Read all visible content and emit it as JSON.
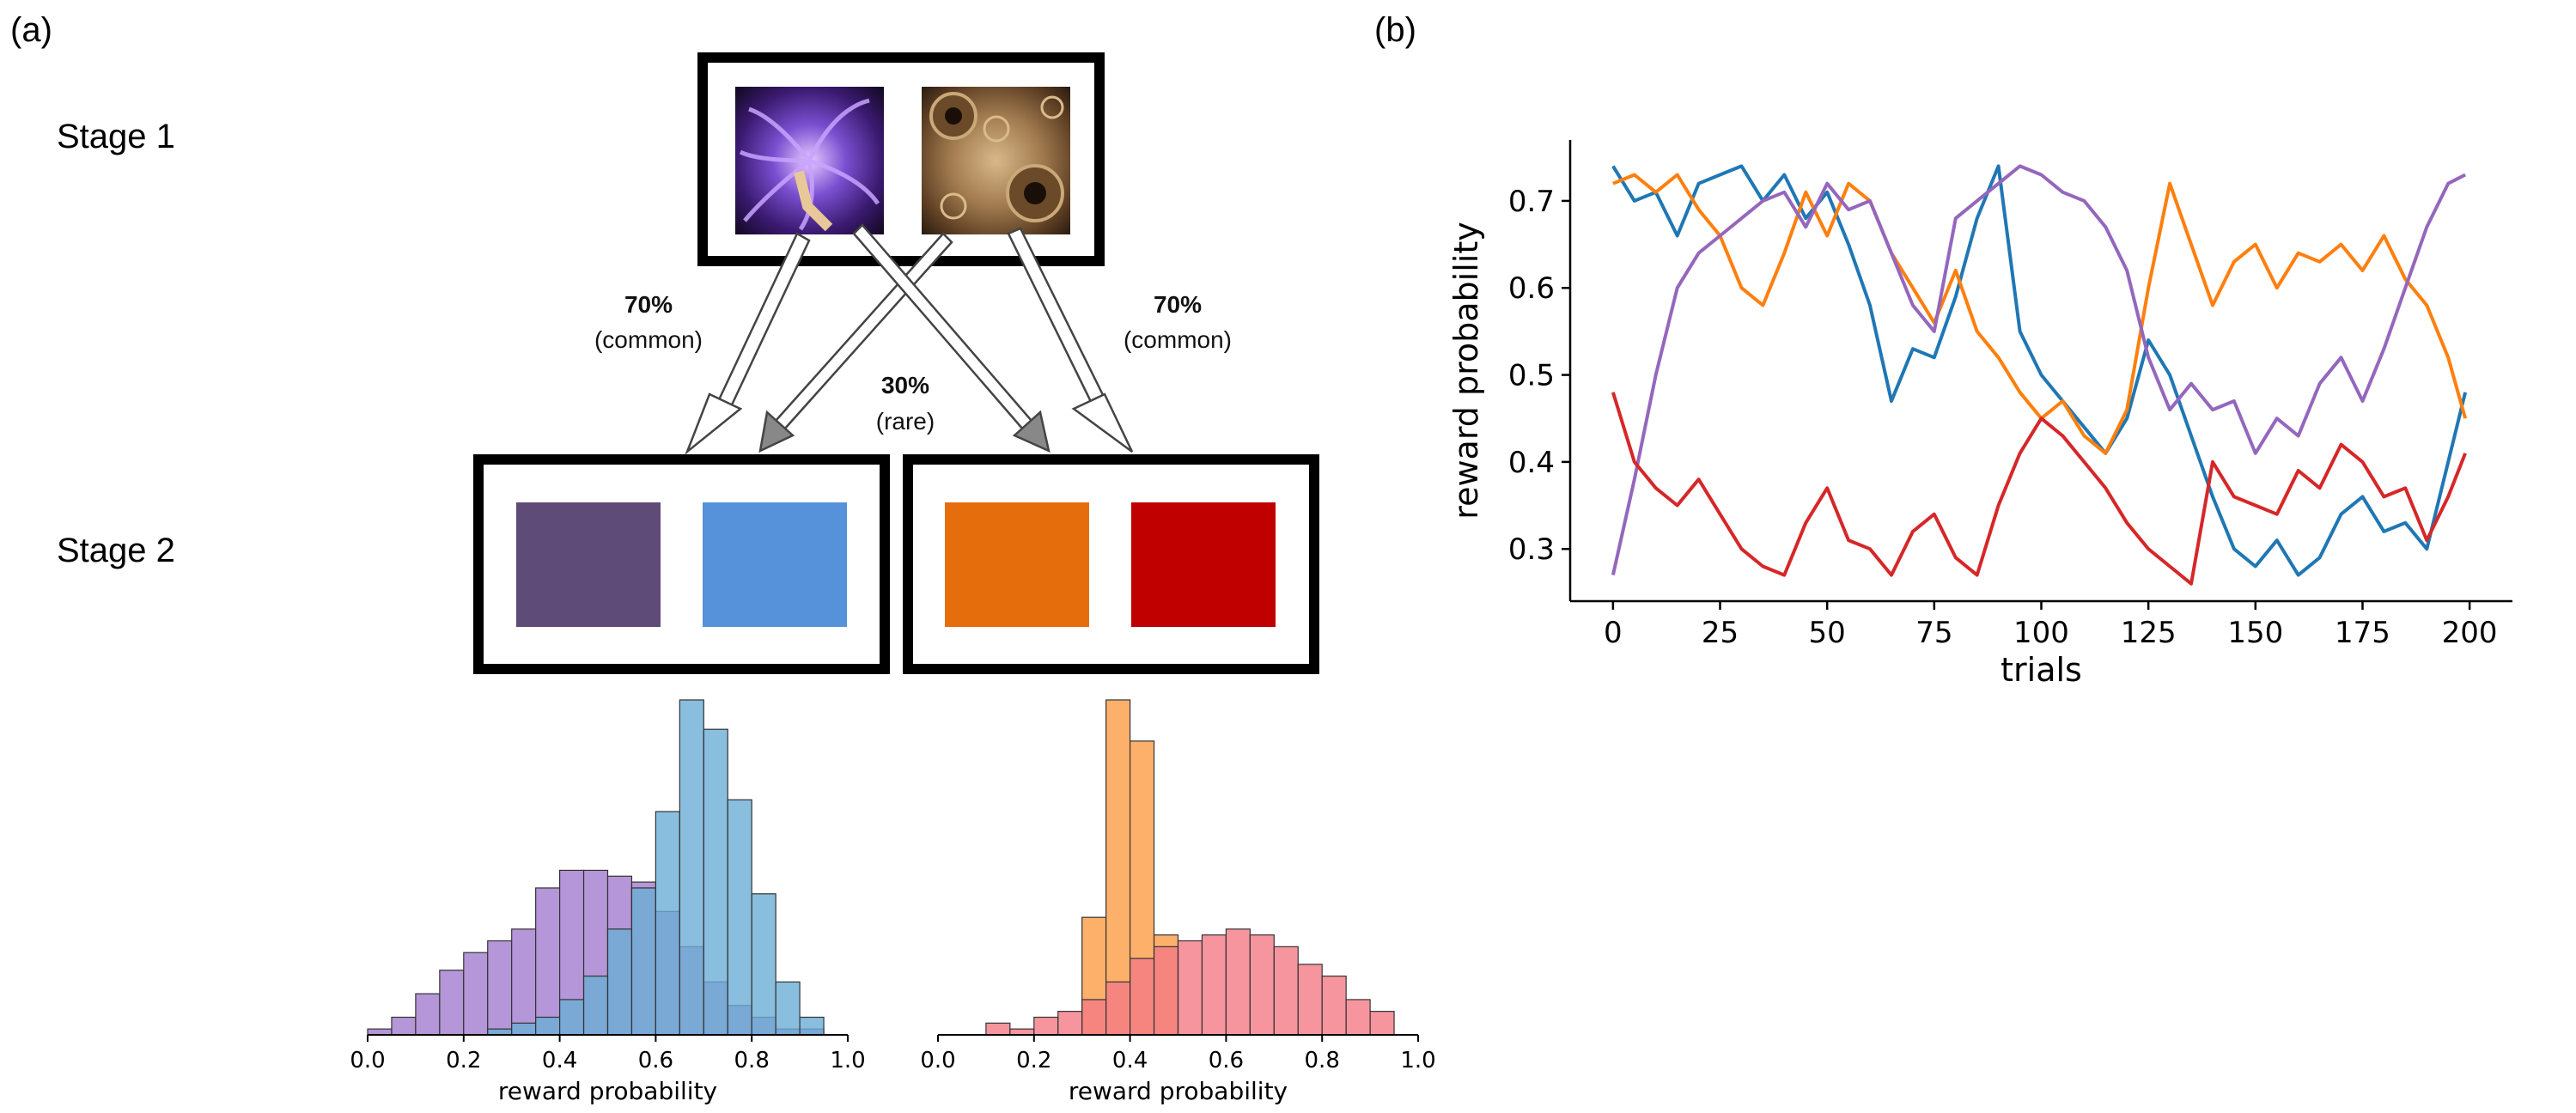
{
  "panel_a": {
    "label": "(a)",
    "stage1_label": "Stage 1",
    "stage2_label": "Stage 2",
    "left_common_pct": "70%",
    "left_common_text": "(common)",
    "right_common_pct": "70%",
    "right_common_text": "(common)",
    "rare_pct": "30%",
    "rare_text": "(rare)",
    "stage2_colors": [
      "#5f4b78",
      "#5592d9",
      "#e56d0b",
      "#c00000"
    ],
    "stage1_image_colors": {
      "fractal1": "#5a3aa0",
      "fractal2": "#8a6a3e"
    }
  },
  "panel_b": {
    "label": "(b)"
  },
  "chart_data": [
    {
      "type": "histogram",
      "title": "",
      "xlabel": "reward probability",
      "ylabel": "",
      "xlim": [
        0,
        1
      ],
      "xticks": [
        "0.0",
        "0.2",
        "0.4",
        "0.6",
        "0.8",
        "1.0"
      ],
      "bin_width": 0.05,
      "series": [
        {
          "name": "purple",
          "color": "#b596d8",
          "bins": [
            0.0,
            0.05,
            0.1,
            0.15,
            0.2,
            0.25,
            0.3,
            0.35,
            0.4,
            0.45,
            0.5,
            0.55,
            0.6,
            0.65,
            0.7,
            0.75,
            0.8,
            0.85,
            0.9
          ],
          "counts": [
            1,
            3,
            7,
            11,
            14,
            16,
            18,
            25,
            28,
            28,
            27,
            26,
            21,
            15,
            9,
            5,
            3,
            1,
            1
          ]
        },
        {
          "name": "blue",
          "color": "#6baed6",
          "bins": [
            0.25,
            0.3,
            0.35,
            0.4,
            0.45,
            0.5,
            0.55,
            0.6,
            0.65,
            0.7,
            0.75,
            0.8,
            0.85,
            0.9
          ],
          "counts": [
            1,
            2,
            3,
            6,
            10,
            18,
            25,
            38,
            57,
            52,
            40,
            24,
            9,
            3
          ]
        }
      ]
    },
    {
      "type": "histogram",
      "title": "",
      "xlabel": "reward probability",
      "ylabel": "",
      "xlim": [
        0,
        1
      ],
      "xticks": [
        "0.0",
        "0.2",
        "0.4",
        "0.6",
        "0.8",
        "1.0"
      ],
      "bin_width": 0.05,
      "series": [
        {
          "name": "orange",
          "color": "#fdb06a",
          "bins": [
            0.3,
            0.35,
            0.4,
            0.45
          ],
          "counts": [
            20,
            57,
            50,
            17
          ]
        },
        {
          "name": "red",
          "color": "#f47b86",
          "bins": [
            0.1,
            0.15,
            0.2,
            0.25,
            0.3,
            0.35,
            0.4,
            0.45,
            0.5,
            0.55,
            0.6,
            0.65,
            0.7,
            0.75,
            0.8,
            0.85,
            0.9
          ],
          "counts": [
            2,
            1,
            3,
            4,
            6,
            9,
            13,
            15,
            16,
            17,
            18,
            17,
            15,
            12,
            10,
            6,
            4
          ]
        }
      ]
    },
    {
      "type": "line",
      "title": "",
      "xlabel": "trials",
      "ylabel": "reward probability",
      "xlim": [
        -10,
        210
      ],
      "ylim": [
        0.24,
        0.77
      ],
      "xticks": [
        0,
        25,
        50,
        75,
        100,
        125,
        150,
        175,
        200
      ],
      "yticks": [
        0.3,
        0.4,
        0.5,
        0.6,
        0.7
      ],
      "series": [
        {
          "name": "blue",
          "color": "#1f77b4",
          "x": [
            0,
            5,
            10,
            15,
            20,
            25,
            30,
            35,
            40,
            45,
            50,
            55,
            60,
            65,
            70,
            75,
            80,
            85,
            90,
            95,
            100,
            105,
            110,
            115,
            120,
            125,
            130,
            135,
            140,
            145,
            150,
            155,
            160,
            165,
            170,
            175,
            180,
            185,
            190,
            195,
            199
          ],
          "y": [
            0.74,
            0.7,
            0.71,
            0.66,
            0.72,
            0.73,
            0.74,
            0.7,
            0.73,
            0.68,
            0.71,
            0.65,
            0.58,
            0.47,
            0.53,
            0.52,
            0.59,
            0.68,
            0.74,
            0.55,
            0.5,
            0.47,
            0.44,
            0.41,
            0.45,
            0.54,
            0.5,
            0.43,
            0.36,
            0.3,
            0.28,
            0.31,
            0.27,
            0.29,
            0.34,
            0.36,
            0.32,
            0.33,
            0.3,
            0.4,
            0.48
          ]
        },
        {
          "name": "orange",
          "color": "#ff7f0e",
          "x": [
            0,
            5,
            10,
            15,
            20,
            25,
            30,
            35,
            40,
            45,
            50,
            55,
            60,
            65,
            70,
            75,
            80,
            85,
            90,
            95,
            100,
            105,
            110,
            115,
            120,
            125,
            130,
            135,
            140,
            145,
            150,
            155,
            160,
            165,
            170,
            175,
            180,
            185,
            190,
            195,
            199
          ],
          "y": [
            0.72,
            0.73,
            0.71,
            0.73,
            0.69,
            0.66,
            0.6,
            0.58,
            0.64,
            0.71,
            0.66,
            0.72,
            0.7,
            0.64,
            0.6,
            0.56,
            0.62,
            0.55,
            0.52,
            0.48,
            0.45,
            0.47,
            0.43,
            0.41,
            0.46,
            0.6,
            0.72,
            0.65,
            0.58,
            0.63,
            0.65,
            0.6,
            0.64,
            0.63,
            0.65,
            0.62,
            0.66,
            0.61,
            0.58,
            0.52,
            0.45
          ]
        },
        {
          "name": "purple",
          "color": "#9467bd",
          "x": [
            0,
            5,
            10,
            15,
            20,
            25,
            30,
            35,
            40,
            45,
            50,
            55,
            60,
            65,
            70,
            75,
            80,
            85,
            90,
            95,
            100,
            105,
            110,
            115,
            120,
            125,
            130,
            135,
            140,
            145,
            150,
            155,
            160,
            165,
            170,
            175,
            180,
            185,
            190,
            195,
            199
          ],
          "y": [
            0.27,
            0.38,
            0.5,
            0.6,
            0.64,
            0.66,
            0.68,
            0.7,
            0.71,
            0.67,
            0.72,
            0.69,
            0.7,
            0.64,
            0.58,
            0.55,
            0.68,
            0.7,
            0.72,
            0.74,
            0.73,
            0.71,
            0.7,
            0.67,
            0.62,
            0.52,
            0.46,
            0.49,
            0.46,
            0.47,
            0.41,
            0.45,
            0.43,
            0.49,
            0.52,
            0.47,
            0.53,
            0.6,
            0.67,
            0.72,
            0.73
          ]
        },
        {
          "name": "red",
          "color": "#d62728",
          "x": [
            0,
            5,
            10,
            15,
            20,
            25,
            30,
            35,
            40,
            45,
            50,
            55,
            60,
            65,
            70,
            75,
            80,
            85,
            90,
            95,
            100,
            105,
            110,
            115,
            120,
            125,
            130,
            135,
            140,
            145,
            150,
            155,
            160,
            165,
            170,
            175,
            180,
            185,
            190,
            195,
            199
          ],
          "y": [
            0.48,
            0.4,
            0.37,
            0.35,
            0.38,
            0.34,
            0.3,
            0.28,
            0.27,
            0.33,
            0.37,
            0.31,
            0.3,
            0.27,
            0.32,
            0.34,
            0.29,
            0.27,
            0.35,
            0.41,
            0.45,
            0.43,
            0.4,
            0.37,
            0.33,
            0.3,
            0.28,
            0.26,
            0.4,
            0.36,
            0.35,
            0.34,
            0.39,
            0.37,
            0.42,
            0.4,
            0.36,
            0.37,
            0.31,
            0.36,
            0.41
          ]
        }
      ]
    }
  ]
}
